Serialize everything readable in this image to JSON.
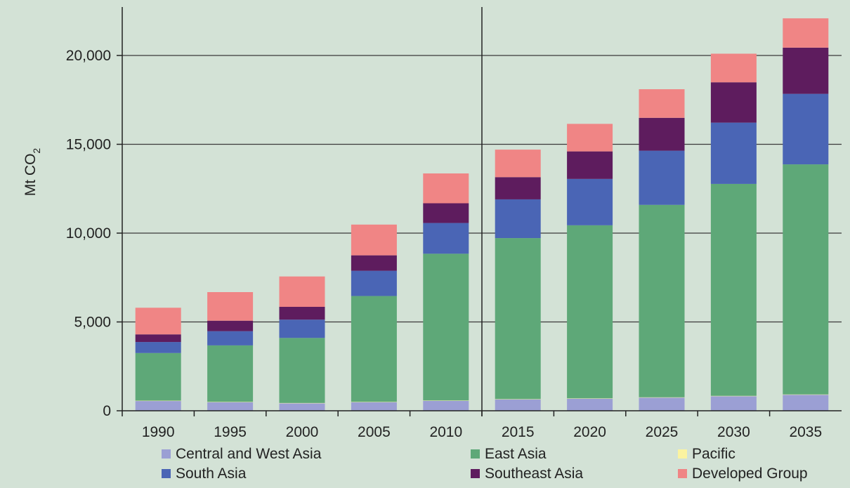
{
  "chart_data": {
    "type": "bar",
    "stacked": true,
    "ylabel": "Mt CO",
    "ylabel_subscript": "2",
    "ylim": [
      0,
      22500
    ],
    "yticks": [
      "0",
      "5,000",
      "10,000",
      "15,000",
      "20,000"
    ],
    "categories": [
      "1990",
      "1995",
      "2000",
      "2005",
      "2010",
      "2015",
      "2020",
      "2025",
      "2030",
      "2035"
    ],
    "grid": true,
    "legend_position": "bottom",
    "series": [
      {
        "name": "Central and West Asia",
        "color": "#9b9fd4",
        "values": [
          550,
          480,
          420,
          480,
          560,
          640,
          680,
          740,
          820,
          900
        ]
      },
      {
        "name": "Pacific",
        "color": "#fbf3a0",
        "values": [
          20,
          20,
          20,
          20,
          20,
          20,
          20,
          20,
          20,
          20
        ]
      },
      {
        "name": "East Asia",
        "color": "#5ea878",
        "values": [
          2680,
          3180,
          3660,
          5960,
          8260,
          9060,
          9740,
          10830,
          11930,
          12950
        ]
      },
      {
        "name": "South Asia",
        "color": "#4a65b5",
        "values": [
          620,
          800,
          1030,
          1420,
          1730,
          2180,
          2610,
          3050,
          3450,
          3970
        ]
      },
      {
        "name": "Southeast Asia",
        "color": "#5e1c5e",
        "values": [
          430,
          590,
          720,
          870,
          1110,
          1250,
          1550,
          1850,
          2270,
          2600
        ]
      },
      {
        "name": "Developed Group",
        "color": "#f08585",
        "values": [
          1500,
          1610,
          1710,
          1730,
          1680,
          1550,
          1550,
          1610,
          1610,
          1650
        ]
      }
    ],
    "legend": [
      {
        "name": "Central and West Asia",
        "color": "#9b9fd4"
      },
      {
        "name": "East Asia",
        "color": "#5ea878"
      },
      {
        "name": "Pacific",
        "color": "#fbf3a0"
      },
      {
        "name": "South Asia",
        "color": "#4a65b5"
      },
      {
        "name": "Southeast Asia",
        "color": "#5e1c5e"
      },
      {
        "name": "Developed Group",
        "color": "#f08585"
      }
    ]
  }
}
